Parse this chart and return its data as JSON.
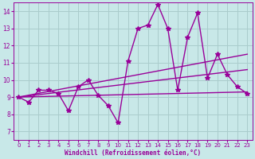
{
  "xlabel": "Windchill (Refroidissement éolien,°C)",
  "xlim": [
    -0.5,
    23.5
  ],
  "ylim": [
    6.5,
    14.5
  ],
  "xticks": [
    0,
    1,
    2,
    3,
    4,
    5,
    6,
    7,
    8,
    9,
    10,
    11,
    12,
    13,
    14,
    15,
    16,
    17,
    18,
    19,
    20,
    21,
    22,
    23
  ],
  "yticks": [
    7,
    8,
    9,
    10,
    11,
    12,
    13,
    14
  ],
  "bg_color": "#c8e8e8",
  "line_color": "#990099",
  "grid_color": "#aacccc",
  "series1_x": [
    0,
    1,
    2,
    3,
    4,
    5,
    6,
    7,
    8,
    9,
    10,
    11,
    12,
    13,
    14,
    15,
    16,
    17,
    18,
    19,
    20,
    21,
    22,
    23
  ],
  "series1_y": [
    9.0,
    8.7,
    9.4,
    9.4,
    9.2,
    8.2,
    9.6,
    10.0,
    9.1,
    8.5,
    7.5,
    11.1,
    13.0,
    13.2,
    14.4,
    13.0,
    9.4,
    12.5,
    13.9,
    10.1,
    11.5,
    10.3,
    9.6,
    9.2
  ],
  "trend1_x": [
    0,
    23
  ],
  "trend1_y": [
    9.0,
    9.3
  ],
  "trend2_x": [
    0,
    23
  ],
  "trend2_y": [
    9.0,
    10.6
  ],
  "trend3_x": [
    0,
    23
  ],
  "trend3_y": [
    9.0,
    11.5
  ],
  "marker": "*",
  "markersize": 4,
  "linewidth": 1.0
}
